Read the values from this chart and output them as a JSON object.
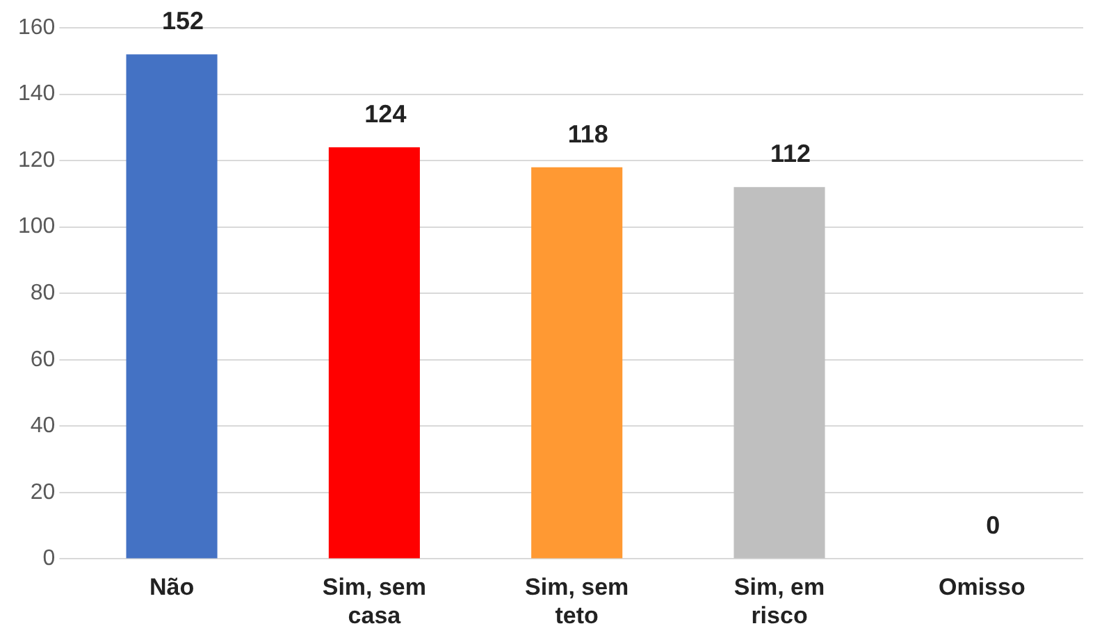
{
  "chart_data": {
    "type": "bar",
    "categories": [
      "Não",
      "Sim, sem casa",
      "Sim, sem teto",
      "Sim, em risco",
      "Omisso"
    ],
    "values": [
      152,
      124,
      118,
      112,
      0
    ],
    "colors": [
      "#4472c4",
      "#ff0000",
      "#ff9933",
      "#bfbfbf",
      "#2f5597"
    ],
    "ylim": [
      0,
      160
    ],
    "yticks": [
      0,
      20,
      40,
      60,
      80,
      100,
      120,
      140,
      160
    ],
    "grid": "y",
    "data_labels": true,
    "legend": false
  }
}
